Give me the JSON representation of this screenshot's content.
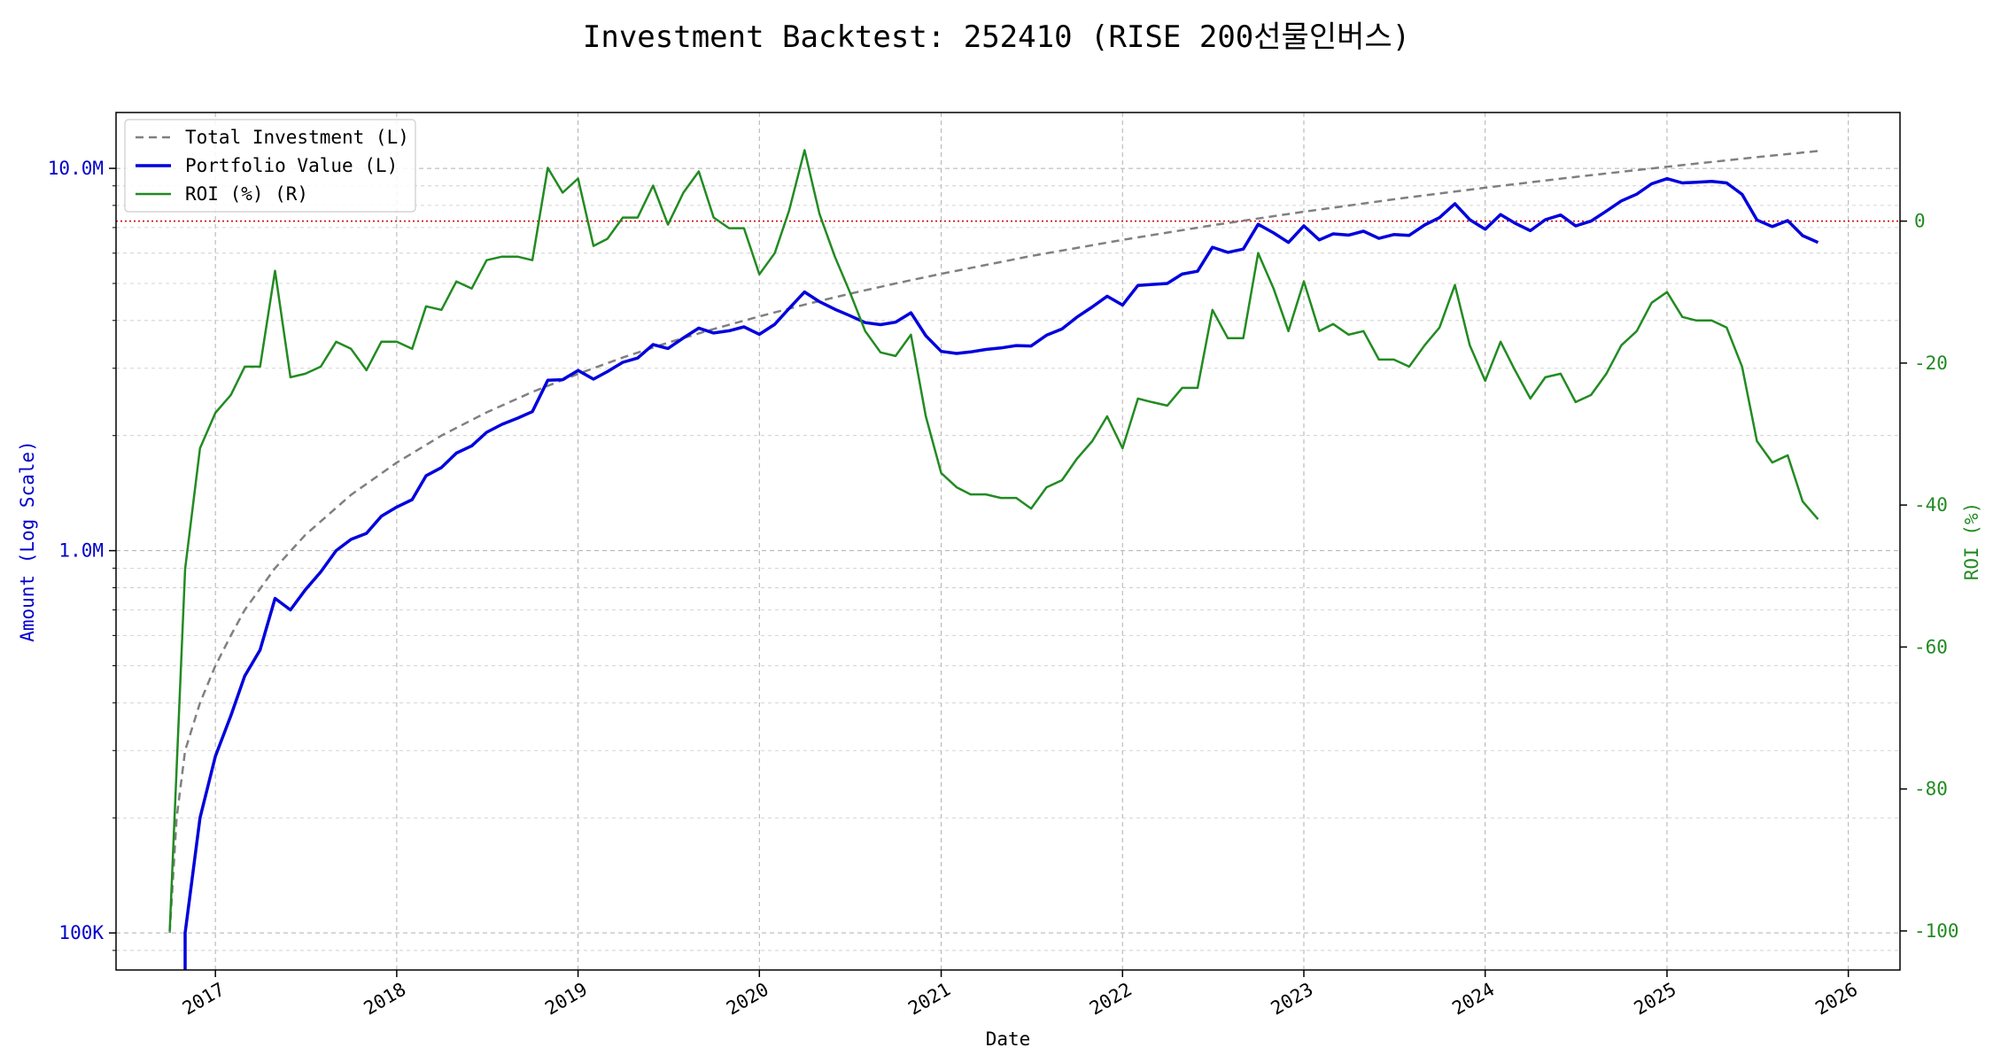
{
  "chart_data": {
    "type": "line",
    "title": "Investment Backtest: 252410 (RISE 200선물인버스)",
    "xlabel": "Date",
    "ylabel_left": "Amount (Log Scale)",
    "ylabel_right": "ROI (%)",
    "x_scale": "time",
    "y_left_scale": "log",
    "y_left_ticks": [
      {
        "value": 100000,
        "label": "100K"
      },
      {
        "value": 1000000,
        "label": "1.0M"
      },
      {
        "value": 10000000,
        "label": "10.0M"
      }
    ],
    "y_left_lim": [
      80000,
      14000000
    ],
    "y_right_ticks": [
      -100,
      -80,
      -60,
      -40,
      -20,
      0
    ],
    "y_right_lim": [
      -105.5,
      15.3
    ],
    "x_ticks": [
      "2017",
      "2018",
      "2019",
      "2020",
      "2021",
      "2022",
      "2023",
      "2024",
      "2025",
      "2026"
    ],
    "x_lim": [
      "2016-06-15",
      "2026-04-15"
    ],
    "grid": true,
    "legend_position": "top-left",
    "zero_reference_line": {
      "axis": "right",
      "value": 0,
      "style": "dotted",
      "color": "#cc0000"
    },
    "series": [
      {
        "name": "Total Investment (L)",
        "axis": "left",
        "style": "dashed",
        "color": "#808080",
        "x": [
          "2016-10-01",
          "2016-10-15",
          "2016-11-01",
          "2016-12-01",
          "2017-01-01",
          "2017-02-01",
          "2017-03-01",
          "2017-05-01",
          "2017-07-01",
          "2017-10-01",
          "2018-01-01",
          "2018-04-01",
          "2018-07-01",
          "2018-10-01",
          "2019-01-01",
          "2019-04-01",
          "2019-07-01",
          "2019-10-01",
          "2020-01-01",
          "2020-04-01",
          "2020-07-01",
          "2020-10-01",
          "2021-01-01",
          "2021-07-01",
          "2022-01-01",
          "2022-07-01",
          "2023-01-01",
          "2023-07-01",
          "2024-01-01",
          "2024-07-01",
          "2025-01-01",
          "2025-07-01",
          "2025-11-01"
        ],
        "values": [
          100000,
          200000,
          300000,
          400000,
          500000,
          600000,
          700000,
          900000,
          1100000,
          1400000,
          1700000,
          2000000,
          2300000,
          2600000,
          2900000,
          3200000,
          3500000,
          3800000,
          4100000,
          4400000,
          4700000,
          5000000,
          5300000,
          5900000,
          6500000,
          7100000,
          7700000,
          8300000,
          8900000,
          9500000,
          10100000,
          10700000,
          11100000
        ]
      },
      {
        "name": "Portfolio Value (L)",
        "axis": "left",
        "style": "solid",
        "color": "#0000dd",
        "x": [
          "2016-11-01",
          "2016-11-01",
          "2016-12-01",
          "2017-01-01",
          "2017-02-01",
          "2017-03-01",
          "2017-04-01",
          "2017-05-01",
          "2017-06-01",
          "2017-07-01",
          "2017-08-01",
          "2017-09-01",
          "2017-10-01",
          "2017-11-01",
          "2017-12-01",
          "2018-01-01",
          "2018-02-01",
          "2018-03-01",
          "2018-04-01",
          "2018-05-01",
          "2018-06-01",
          "2018-07-01",
          "2018-08-01",
          "2018-09-01",
          "2018-10-01",
          "2018-11-01",
          "2018-12-01",
          "2019-01-01",
          "2019-02-01",
          "2019-03-01",
          "2019-04-01",
          "2019-05-01",
          "2019-06-01",
          "2019-07-01",
          "2019-08-01",
          "2019-09-01",
          "2019-10-01",
          "2019-11-01",
          "2019-12-01",
          "2020-01-01",
          "2020-02-01",
          "2020-03-01",
          "2020-04-01",
          "2020-05-01",
          "2020-06-01",
          "2020-07-01",
          "2020-08-01",
          "2020-09-01",
          "2020-10-01",
          "2020-11-01",
          "2020-12-01",
          "2021-01-01",
          "2021-02-01",
          "2021-03-01",
          "2021-04-01",
          "2021-05-01",
          "2021-06-01",
          "2021-07-01",
          "2021-08-01",
          "2021-09-01",
          "2021-10-01",
          "2021-11-01",
          "2021-12-01",
          "2022-01-01",
          "2022-02-01",
          "2022-03-01",
          "2022-04-01",
          "2022-05-01",
          "2022-06-01",
          "2022-07-01",
          "2022-08-01",
          "2022-09-01",
          "2022-10-01",
          "2022-11-01",
          "2022-12-01",
          "2023-01-01",
          "2023-02-01",
          "2023-03-01",
          "2023-04-01",
          "2023-05-01",
          "2023-06-01",
          "2023-07-01",
          "2023-08-01",
          "2023-09-01",
          "2023-10-01",
          "2023-11-01",
          "2023-12-01",
          "2024-01-01",
          "2024-02-01",
          "2024-03-01",
          "2024-04-01",
          "2024-05-01",
          "2024-06-01",
          "2024-07-01",
          "2024-08-01",
          "2024-09-01",
          "2024-10-01",
          "2024-11-01",
          "2024-12-01",
          "2025-01-01",
          "2025-02-01",
          "2025-03-01",
          "2025-04-01",
          "2025-05-01",
          "2025-06-01",
          "2025-07-01",
          "2025-08-01",
          "2025-09-01",
          "2025-10-01",
          "2025-11-01"
        ],
        "values": [
          75000,
          100000,
          200000,
          290000,
          370000,
          470000,
          550000,
          750000,
          700000,
          790000,
          880000,
          1000000,
          1070000,
          1110000,
          1230000,
          1300000,
          1360000,
          1570000,
          1650000,
          1800000,
          1880000,
          2040000,
          2140000,
          2220000,
          2310000,
          2790000,
          2800000,
          2960000,
          2810000,
          2940000,
          3110000,
          3190000,
          3460000,
          3380000,
          3600000,
          3820000,
          3710000,
          3760000,
          3850000,
          3680000,
          3910000,
          4300000,
          4750000,
          4480000,
          4280000,
          4120000,
          3950000,
          3900000,
          3960000,
          4190000,
          3650000,
          3320000,
          3280000,
          3310000,
          3360000,
          3390000,
          3440000,
          3430000,
          3660000,
          3800000,
          4080000,
          4340000,
          4630000,
          4390000,
          4940000,
          4970000,
          5000000,
          5290000,
          5380000,
          6220000,
          6030000,
          6150000,
          7140000,
          6780000,
          6400000,
          7070000,
          6500000,
          6740000,
          6690000,
          6850000,
          6560000,
          6710000,
          6680000,
          7110000,
          7430000,
          8080000,
          7340000,
          6930000,
          7570000,
          7190000,
          6870000,
          7340000,
          7550000,
          7070000,
          7280000,
          7730000,
          8220000,
          8560000,
          9110000,
          9400000,
          9160000,
          9200000,
          9250000,
          9160000,
          8550000,
          7330000,
          7040000,
          7300000,
          6670000,
          6400000
        ]
      },
      {
        "name": "ROI (%) (R)",
        "axis": "right",
        "style": "solid",
        "color": "#228b22",
        "x": [
          "2016-10-01",
          "2016-11-01",
          "2016-12-01",
          "2017-01-01",
          "2017-02-01",
          "2017-03-01",
          "2017-04-01",
          "2017-05-01",
          "2017-06-01",
          "2017-07-01",
          "2017-08-01",
          "2017-09-01",
          "2017-10-01",
          "2017-11-01",
          "2017-12-01",
          "2018-01-01",
          "2018-02-01",
          "2018-03-01",
          "2018-04-01",
          "2018-05-01",
          "2018-06-01",
          "2018-07-01",
          "2018-08-01",
          "2018-09-01",
          "2018-10-01",
          "2018-11-01",
          "2018-12-01",
          "2019-01-01",
          "2019-02-01",
          "2019-03-01",
          "2019-04-01",
          "2019-05-01",
          "2019-06-01",
          "2019-07-01",
          "2019-08-01",
          "2019-09-01",
          "2019-10-01",
          "2019-11-01",
          "2019-12-01",
          "2020-01-01",
          "2020-02-01",
          "2020-03-01",
          "2020-04-01",
          "2020-05-01",
          "2020-06-01",
          "2020-07-01",
          "2020-08-01",
          "2020-09-01",
          "2020-10-01",
          "2020-11-01",
          "2020-12-01",
          "2021-01-01",
          "2021-02-01",
          "2021-03-01",
          "2021-04-01",
          "2021-05-01",
          "2021-06-01",
          "2021-07-01",
          "2021-08-01",
          "2021-09-01",
          "2021-10-01",
          "2021-11-01",
          "2021-12-01",
          "2022-01-01",
          "2022-02-01",
          "2022-03-01",
          "2022-04-01",
          "2022-05-01",
          "2022-06-01",
          "2022-07-01",
          "2022-08-01",
          "2022-09-01",
          "2022-10-01",
          "2022-11-01",
          "2022-12-01",
          "2023-01-01",
          "2023-02-01",
          "2023-03-01",
          "2023-04-01",
          "2023-05-01",
          "2023-06-01",
          "2023-07-01",
          "2023-08-01",
          "2023-09-01",
          "2023-10-01",
          "2023-11-01",
          "2023-12-01",
          "2024-01-01",
          "2024-02-01",
          "2024-03-01",
          "2024-04-01",
          "2024-05-01",
          "2024-06-01",
          "2024-07-01",
          "2024-08-01",
          "2024-09-01",
          "2024-10-01",
          "2024-11-01",
          "2024-12-01",
          "2025-01-01",
          "2025-02-01",
          "2025-03-01",
          "2025-04-01",
          "2025-05-01",
          "2025-06-01",
          "2025-07-01",
          "2025-08-01",
          "2025-09-01",
          "2025-10-01",
          "2025-11-01"
        ],
        "values": [
          -100,
          -49,
          -32,
          -27,
          -24.5,
          -20.5,
          -20.5,
          -7,
          -22,
          -21.5,
          -20.5,
          -17,
          -18,
          -21,
          -17,
          -17,
          -18,
          -12,
          -12.5,
          -8.5,
          -9.5,
          -5.5,
          -5,
          -5,
          -5.5,
          7.5,
          4,
          6,
          -3.5,
          -2.5,
          0.5,
          0.5,
          5,
          -0.5,
          4,
          7,
          0.5,
          -1,
          -1,
          -7.5,
          -4.5,
          1.5,
          10,
          1,
          -5,
          -10,
          -15.5,
          -18.5,
          -19,
          -16,
          -27.5,
          -35.5,
          -37.5,
          -38.5,
          -38.5,
          -39,
          -39,
          -40.5,
          -37.5,
          -36.5,
          -33.5,
          -31,
          -27.5,
          -32,
          -25,
          -25.5,
          -26,
          -23.5,
          -23.5,
          -12.5,
          -16.5,
          -16.5,
          -4.5,
          -9.5,
          -15.5,
          -8.5,
          -15.5,
          -14.5,
          -16,
          -15.5,
          -19.5,
          -19.5,
          -20.5,
          -17.5,
          -15,
          -9,
          -17.5,
          -22.5,
          -17,
          -21,
          -25,
          -22,
          -21.5,
          -25.5,
          -24.5,
          -21.5,
          -17.5,
          -15.5,
          -11.5,
          -10,
          -13.5,
          -14,
          -14,
          -15,
          -20.5,
          -31,
          -34,
          -33,
          -39.5,
          -42
        ]
      }
    ]
  }
}
